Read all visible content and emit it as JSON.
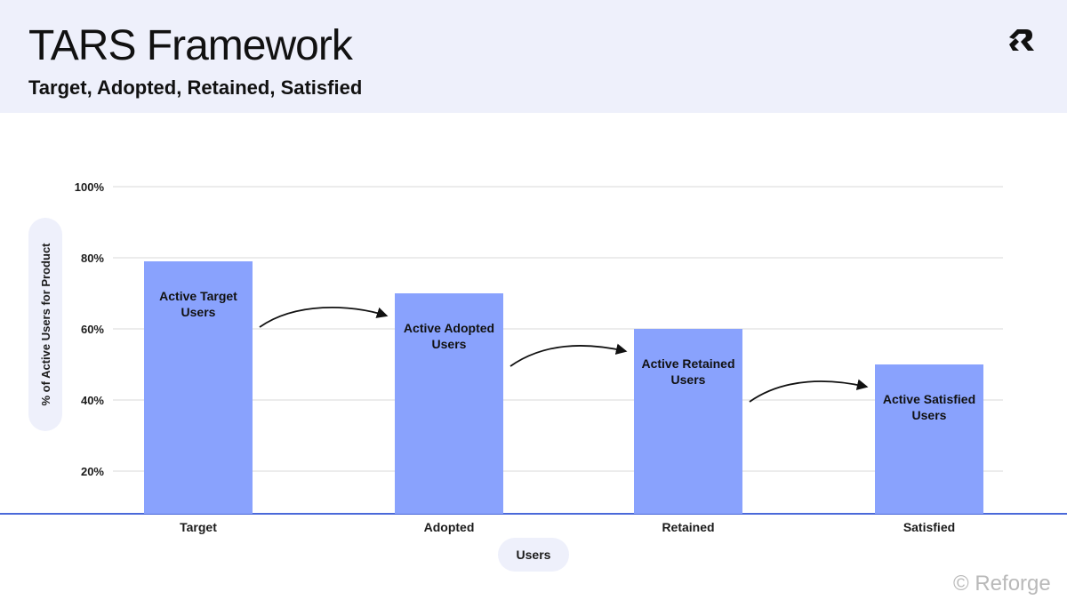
{
  "header": {
    "title": "TARS Framework",
    "subtitle": "Target, Adopted, Retained, Satisfied",
    "logo_icon": "reforge-logo-icon"
  },
  "footer": {
    "copyright": "© Reforge"
  },
  "colors": {
    "header_bg": "#eef0fb",
    "bar": "#89a2fd",
    "baseline": "#4a69d9",
    "grid": "#e6e6e6",
    "axis_pill": "#eef0fb",
    "arrow": "#111111"
  },
  "chart_data": {
    "type": "bar",
    "categories": [
      "Target",
      "Adopted",
      "Retained",
      "Satisfied"
    ],
    "values": [
      79,
      70,
      60,
      50
    ],
    "bar_labels": [
      "Active Target Users",
      "Active Adopted Users",
      "Active Retained Users",
      "Active Satisfied Users"
    ],
    "ylabel": "% of Active Users for Product",
    "xlabel": "Users",
    "yticks": [
      20,
      40,
      60,
      80,
      100
    ],
    "ytick_labels": [
      "20%",
      "40%",
      "60%",
      "80%",
      "100%"
    ],
    "ylim": [
      8,
      100
    ],
    "grid": true,
    "arrows_between_bars": true
  }
}
